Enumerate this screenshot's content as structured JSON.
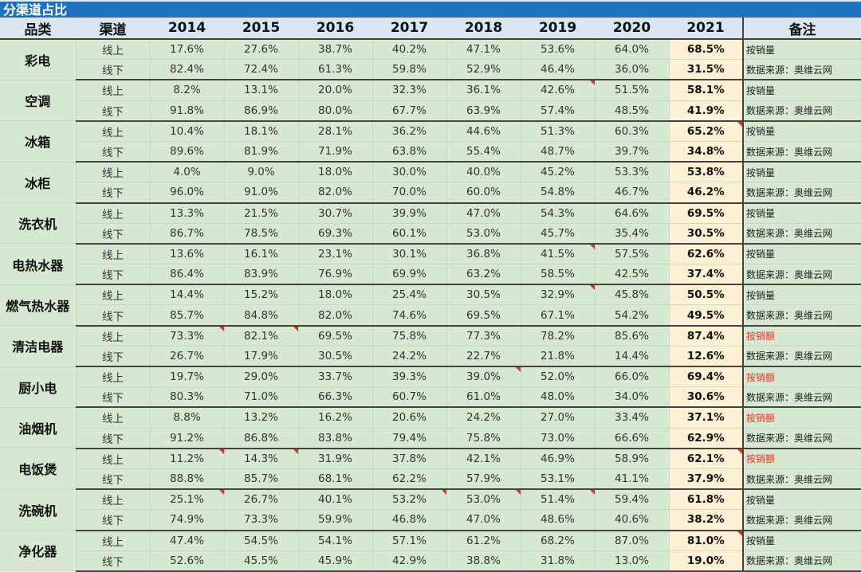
{
  "title": "分渠道占比",
  "headers": {
    "category": "品类",
    "channel": "渠道",
    "years": [
      "2014",
      "2015",
      "2016",
      "2017",
      "2018",
      "2019",
      "2020",
      "2021"
    ],
    "note": "备注"
  },
  "colors": {
    "title_bar": "#2070bd",
    "header_bg": "#dbe4f2",
    "cell_bg": "#d6e8d1",
    "highlight_bg": "#fdf0d4",
    "note_red": "#e23b2b",
    "comment_marker": "#e0301e"
  },
  "rows": [
    {
      "category": "彩电",
      "online": {
        "label": "线上",
        "values": [
          "17.6%",
          "27.6%",
          "38.7%",
          "40.2%",
          "47.1%",
          "53.6%",
          "64.0%",
          "68.5%"
        ],
        "note": "按销量",
        "note_red": false,
        "flags": []
      },
      "offline": {
        "label": "线下",
        "values": [
          "82.4%",
          "72.4%",
          "61.3%",
          "59.8%",
          "52.9%",
          "46.4%",
          "36.0%",
          "31.5%"
        ],
        "note": "数据来源：奥维云网"
      }
    },
    {
      "category": "空调",
      "online": {
        "label": "线上",
        "values": [
          "8.2%",
          "13.1%",
          "20.0%",
          "32.3%",
          "36.1%",
          "42.6%",
          "51.5%",
          "58.1%"
        ],
        "note": "按销量",
        "note_red": false,
        "flags": [
          "2019"
        ]
      },
      "offline": {
        "label": "线下",
        "values": [
          "91.8%",
          "86.9%",
          "80.0%",
          "67.7%",
          "63.9%",
          "57.4%",
          "48.5%",
          "41.9%"
        ],
        "note": "数据来源：奥维云网"
      }
    },
    {
      "category": "冰箱",
      "online": {
        "label": "线上",
        "values": [
          "10.4%",
          "18.1%",
          "28.1%",
          "36.2%",
          "44.6%",
          "51.3%",
          "60.3%",
          "65.2%"
        ],
        "note": "按销量",
        "note_red": false,
        "flags": [
          "2021"
        ]
      },
      "offline": {
        "label": "线下",
        "values": [
          "89.6%",
          "81.9%",
          "71.9%",
          "63.8%",
          "55.4%",
          "48.7%",
          "39.7%",
          "34.8%"
        ],
        "note": "数据来源：奥维云网"
      }
    },
    {
      "category": "冰柜",
      "online": {
        "label": "线上",
        "values": [
          "4.0%",
          "9.0%",
          "18.0%",
          "30.0%",
          "40.0%",
          "45.2%",
          "53.3%",
          "53.8%"
        ],
        "note": "按销量",
        "note_red": false,
        "flags": []
      },
      "offline": {
        "label": "线下",
        "values": [
          "96.0%",
          "91.0%",
          "82.0%",
          "70.0%",
          "60.0%",
          "54.8%",
          "46.7%",
          "46.2%"
        ],
        "note": "数据来源：奥维云网"
      }
    },
    {
      "category": "洗衣机",
      "online": {
        "label": "线上",
        "values": [
          "13.3%",
          "21.5%",
          "30.7%",
          "39.9%",
          "47.0%",
          "54.3%",
          "64.6%",
          "69.5%"
        ],
        "note": "按销量",
        "note_red": false,
        "flags": []
      },
      "offline": {
        "label": "线下",
        "values": [
          "86.7%",
          "78.5%",
          "69.3%",
          "60.1%",
          "53.0%",
          "45.7%",
          "35.4%",
          "30.5%"
        ],
        "note": "数据来源：奥维云网"
      }
    },
    {
      "category": "电热水器",
      "online": {
        "label": "线上",
        "values": [
          "13.6%",
          "16.1%",
          "23.1%",
          "30.1%",
          "36.8%",
          "41.5%",
          "57.5%",
          "62.6%"
        ],
        "note": "按销量",
        "note_red": false,
        "flags": [
          "2019"
        ]
      },
      "offline": {
        "label": "线下",
        "values": [
          "86.4%",
          "83.9%",
          "76.9%",
          "69.9%",
          "63.2%",
          "58.5%",
          "42.5%",
          "37.4%"
        ],
        "note": "数据来源：奥维云网"
      }
    },
    {
      "category": "燃气热水器",
      "online": {
        "label": "线上",
        "values": [
          "14.4%",
          "15.2%",
          "18.0%",
          "25.4%",
          "30.5%",
          "32.9%",
          "45.8%",
          "50.5%"
        ],
        "note": "按销量",
        "note_red": false,
        "flags": [
          "2019"
        ]
      },
      "offline": {
        "label": "线下",
        "values": [
          "85.7%",
          "84.8%",
          "82.0%",
          "74.6%",
          "69.5%",
          "67.1%",
          "54.2%",
          "49.5%"
        ],
        "note": "数据来源：奥维云网"
      }
    },
    {
      "category": "清洁电器",
      "online": {
        "label": "线上",
        "values": [
          "73.3%",
          "82.1%",
          "69.5%",
          "75.8%",
          "77.3%",
          "78.2%",
          "85.6%",
          "87.4%"
        ],
        "note": "按销额",
        "note_red": true,
        "flags": [
          "2014",
          "2015"
        ]
      },
      "offline": {
        "label": "线下",
        "values": [
          "26.7%",
          "17.9%",
          "30.5%",
          "24.2%",
          "22.7%",
          "21.8%",
          "14.4%",
          "12.6%"
        ],
        "note": "数据来源：奥维云网"
      }
    },
    {
      "category": "厨小电",
      "online": {
        "label": "线上",
        "values": [
          "19.7%",
          "29.0%",
          "33.7%",
          "39.3%",
          "39.0%",
          "52.0%",
          "66.0%",
          "69.4%"
        ],
        "note": "按销额",
        "note_red": true,
        "flags": [
          "2018"
        ]
      },
      "offline": {
        "label": "线下",
        "values": [
          "80.3%",
          "71.0%",
          "66.3%",
          "60.7%",
          "61.0%",
          "48.0%",
          "34.0%",
          "30.6%"
        ],
        "note": "数据来源：奥维云网"
      }
    },
    {
      "category": "油烟机",
      "online": {
        "label": "线上",
        "values": [
          "8.8%",
          "13.2%",
          "16.2%",
          "20.6%",
          "24.2%",
          "27.0%",
          "33.4%",
          "37.1%"
        ],
        "note": "按销额",
        "note_red": true,
        "flags": []
      },
      "offline": {
        "label": "线下",
        "values": [
          "91.2%",
          "86.8%",
          "83.8%",
          "79.4%",
          "75.8%",
          "73.0%",
          "66.6%",
          "62.9%"
        ],
        "note": "数据来源：奥维云网"
      }
    },
    {
      "category": "电饭煲",
      "online": {
        "label": "线上",
        "values": [
          "11.2%",
          "14.3%",
          "31.9%",
          "37.8%",
          "42.1%",
          "46.9%",
          "58.9%",
          "62.1%"
        ],
        "note": "按销额",
        "note_red": true,
        "flags": [
          "2014",
          "2015",
          "2021"
        ]
      },
      "offline": {
        "label": "线下",
        "values": [
          "88.8%",
          "85.7%",
          "68.1%",
          "62.2%",
          "57.9%",
          "53.1%",
          "41.1%",
          "37.9%"
        ],
        "note": "数据来源：奥维云网"
      }
    },
    {
      "category": "洗碗机",
      "online": {
        "label": "线上",
        "values": [
          "25.1%",
          "26.7%",
          "40.1%",
          "53.2%",
          "53.0%",
          "51.4%",
          "59.4%",
          "61.8%"
        ],
        "note": "按销量",
        "note_red": false,
        "flags": [
          "2014",
          "2017",
          "2018",
          "2019"
        ]
      },
      "offline": {
        "label": "线下",
        "values": [
          "74.9%",
          "73.3%",
          "59.9%",
          "46.8%",
          "47.0%",
          "48.6%",
          "40.6%",
          "38.2%"
        ],
        "note": "数据来源：奥维云网"
      }
    },
    {
      "category": "净化器",
      "online": {
        "label": "线上",
        "values": [
          "47.4%",
          "54.5%",
          "54.1%",
          "57.1%",
          "61.2%",
          "68.2%",
          "87.0%",
          "81.0%"
        ],
        "note": "按销量",
        "note_red": false,
        "flags": [
          "2021"
        ]
      },
      "offline": {
        "label": "线下",
        "values": [
          "52.6%",
          "45.5%",
          "45.9%",
          "42.9%",
          "38.8%",
          "31.8%",
          "13.0%",
          "19.0%"
        ],
        "note": "数据来源：奥维云网"
      }
    }
  ]
}
